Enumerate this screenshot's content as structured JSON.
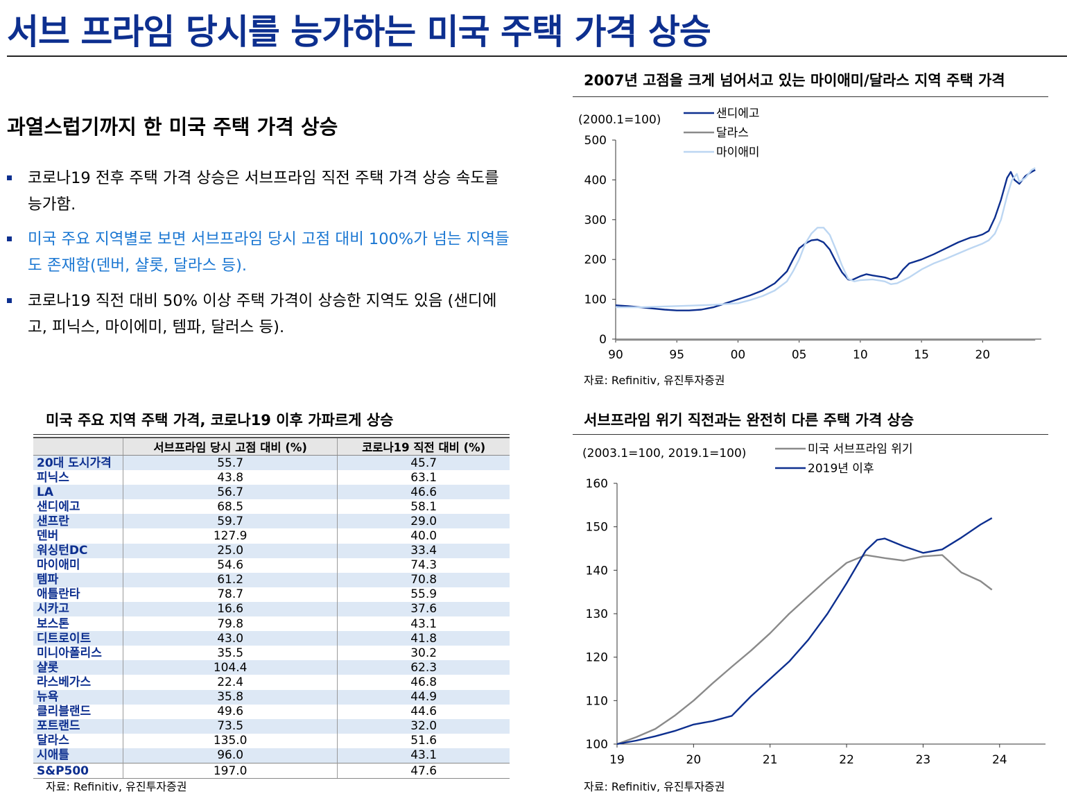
{
  "page": {
    "title": "서브 프라임 당시를 능가하는 미국 주택 가격 상승",
    "section_heading": "과열스럽기까지 한 미국 주택 가격 상승",
    "bullets": [
      "코로나19 전후 주택 가격 상승은 서브프라임 직전 주택 가격 상승 속도를 능가함.",
      "미국 주요 지역별로 보면 서브프라임 당시 고점 대비 100%가 넘는 지역들도 존재함(덴버, 샬롯, 달라스 등).",
      "코로나19 직전 대비 50% 이상 주택 가격이 상승한 지역도 있음 (샌디에고, 피닉스, 마이에미, 템파, 달러스 등)."
    ],
    "source_text": "자료: Refinitiv, 유진투자증권"
  },
  "colors": {
    "title": "#0d2f8f",
    "dark_blue": "#0d2f8f",
    "gray": "#8a8a8a",
    "light_blue": "#bcd6f2",
    "highlight_text": "#1976d2",
    "row_alt": "#dde8f5"
  },
  "table": {
    "title": "미국 주요 지역 주택 가격, 코로나19 이후 가파르게 상승",
    "headers": [
      "",
      "서브프라임 당시 고점 대비 (%)",
      "코로나19  직전 대비 (%)"
    ],
    "rows": [
      [
        "20대 도시가격",
        "55.7",
        "45.7"
      ],
      [
        "피닉스",
        "43.8",
        "63.1"
      ],
      [
        "LA",
        "56.7",
        "46.6"
      ],
      [
        "샌디에고",
        "68.5",
        "58.1"
      ],
      [
        "샌프란",
        "59.7",
        "29.0"
      ],
      [
        "덴버",
        "127.9",
        "40.0"
      ],
      [
        "워싱턴DC",
        "25.0",
        "33.4"
      ],
      [
        "마이애미",
        "54.6",
        "74.3"
      ],
      [
        "템파",
        "61.2",
        "70.8"
      ],
      [
        "애틀란타",
        "78.7",
        "55.9"
      ],
      [
        "시카고",
        "16.6",
        "37.6"
      ],
      [
        "보스톤",
        "79.8",
        "43.1"
      ],
      [
        "디트로이트",
        "43.0",
        "41.8"
      ],
      [
        "미니아폴리스",
        "35.5",
        "30.2"
      ],
      [
        "샬롯",
        "104.4",
        "62.3"
      ],
      [
        "라스베가스",
        "22.4",
        "46.8"
      ],
      [
        "뉴욕",
        "35.8",
        "44.9"
      ],
      [
        "클리블랜드",
        "49.6",
        "44.6"
      ],
      [
        "포트랜드",
        "73.5",
        "32.0"
      ],
      [
        "달라스",
        "135.0",
        "51.6"
      ],
      [
        "시애틀",
        "96.0",
        "43.1"
      ],
      [
        "S&P500",
        "197.0",
        "47.6"
      ]
    ]
  },
  "chart_data": [
    {
      "type": "line",
      "title": "2007년 고점을 크게 넘어서고 있는 마이애미/달라스 지역 주택 가격",
      "unit_label": "(2000.1=100)",
      "xlabel": "",
      "ylabel": "",
      "xlim": [
        1990,
        2024.8
      ],
      "ylim": [
        0,
        500
      ],
      "yticks": [
        0,
        100,
        200,
        300,
        400,
        500
      ],
      "xticks": [
        1990,
        1995,
        2000,
        2005,
        2010,
        2015,
        2020
      ],
      "xtick_labels": [
        "90",
        "95",
        "00",
        "05",
        "10",
        "15",
        "20"
      ],
      "legend_position": "top-center",
      "series": [
        {
          "name": "샌디에고",
          "color": "#0d2f8f",
          "x": [
            1990,
            1991,
            1992,
            1993,
            1994,
            1995,
            1996,
            1997,
            1998,
            1999,
            2000,
            2001,
            2002,
            2003,
            2004,
            2004.5,
            2005,
            2005.5,
            2006,
            2006.5,
            2007,
            2007.5,
            2008,
            2008.5,
            2009,
            2009.3,
            2010,
            2010.5,
            2011,
            2012,
            2012.5,
            2013,
            2013.5,
            2014,
            2015,
            2016,
            2017,
            2018,
            2019,
            2019.5,
            2020,
            2020.5,
            2021,
            2021.5,
            2022,
            2022.3,
            2022.6,
            2023,
            2023.5,
            2024,
            2024.3
          ],
          "y": [
            85,
            83,
            80,
            77,
            74,
            72,
            72,
            74,
            80,
            90,
            100,
            110,
            122,
            140,
            170,
            200,
            228,
            240,
            248,
            250,
            243,
            225,
            195,
            168,
            150,
            148,
            158,
            163,
            160,
            155,
            150,
            155,
            175,
            190,
            200,
            213,
            228,
            243,
            255,
            258,
            263,
            272,
            305,
            350,
            405,
            420,
            400,
            390,
            410,
            420,
            425
          ]
        },
        {
          "name": "달라스",
          "color": "#8a8a8a",
          "x": [
            1990,
            1992,
            1994,
            1996,
            1998,
            2000,
            2002,
            2004,
            2006,
            2007,
            2008,
            2009,
            2010,
            2011,
            2012,
            2013,
            2014,
            2015,
            2016,
            2017,
            2018,
            2019,
            2020,
            2021,
            2021.5,
            2022,
            2022.3,
            2022.7,
            2023,
            2023.5,
            2024,
            2024.3
          ],
          "y": [
            -2,
            -2,
            -2,
            -2,
            -2,
            -2,
            -2,
            -2,
            -2,
            -2,
            -2,
            -2,
            -2,
            -2,
            -2,
            -2,
            -2,
            -2,
            -2,
            -2,
            -2,
            -2,
            -2,
            -2,
            -2,
            -2,
            -2,
            -2,
            -2,
            -2,
            -2,
            -2
          ]
        },
        {
          "name": "마이애미",
          "color": "#bcd6f2",
          "x": [
            1990,
            1992,
            1994,
            1996,
            1998,
            2000,
            2001,
            2002,
            2003,
            2004,
            2004.5,
            2005,
            2005.5,
            2006,
            2006.5,
            2007,
            2007.5,
            2008,
            2008.5,
            2009,
            2009.5,
            2010,
            2011,
            2012,
            2012.5,
            2013,
            2014,
            2015,
            2016,
            2017,
            2018,
            2019,
            2020,
            2020.5,
            2021,
            2021.5,
            2022,
            2022.4,
            2022.8,
            2023,
            2023.5,
            2024,
            2024.3
          ],
          "y": [
            80,
            80,
            82,
            84,
            86,
            90,
            98,
            108,
            122,
            145,
            170,
            200,
            240,
            265,
            280,
            280,
            262,
            225,
            185,
            152,
            145,
            148,
            150,
            145,
            138,
            140,
            155,
            175,
            190,
            202,
            215,
            228,
            240,
            248,
            265,
            300,
            360,
            400,
            415,
            395,
            405,
            425,
            430
          ]
        }
      ]
    },
    {
      "type": "line",
      "title": "서브프라임 위기 직전과는 완전히 다른 주택 가격 상승",
      "unit_label": "(2003.1=100, 2019.1=100)",
      "xlabel": "",
      "ylabel": "",
      "xlim": [
        19,
        24.6
      ],
      "ylim": [
        100,
        160
      ],
      "yticks": [
        100,
        110,
        120,
        130,
        140,
        150,
        160
      ],
      "xticks": [
        19,
        20,
        21,
        22,
        23,
        24
      ],
      "xtick_labels": [
        "19",
        "20",
        "21",
        "22",
        "23",
        "24"
      ],
      "legend_position": "top-center",
      "series": [
        {
          "name": "미국 서브프라임 위기",
          "color": "#8a8a8a",
          "x": [
            19,
            19.25,
            19.5,
            19.75,
            20,
            20.25,
            20.5,
            20.75,
            21,
            21.25,
            21.5,
            21.75,
            22,
            22.25,
            22.5,
            22.75,
            23,
            23.25,
            23.5,
            23.75,
            23.9
          ],
          "y": [
            100,
            101.6,
            103.5,
            106.5,
            110,
            114,
            117.8,
            121.5,
            125.5,
            130,
            134,
            138,
            141.7,
            143.5,
            142.8,
            142.2,
            143.2,
            143.5,
            139.5,
            137.5,
            135.5
          ]
        },
        {
          "name": "2019년 이후",
          "color": "#0d2f8f",
          "x": [
            19,
            19.25,
            19.5,
            19.75,
            20,
            20.25,
            20.5,
            20.75,
            21,
            21.25,
            21.5,
            21.75,
            22,
            22.25,
            22.4,
            22.5,
            22.75,
            23,
            23.25,
            23.5,
            23.75,
            23.9
          ],
          "y": [
            100,
            100.8,
            101.8,
            103,
            104.5,
            105.3,
            106.5,
            111,
            115,
            119,
            124,
            130,
            137,
            144.5,
            147,
            147.3,
            145.5,
            144,
            144.8,
            147.5,
            150.5,
            152
          ]
        }
      ]
    }
  ]
}
